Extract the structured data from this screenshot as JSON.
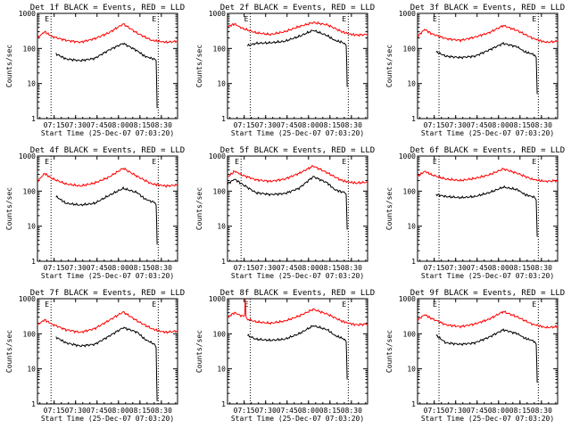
{
  "colors": {
    "events": "#000000",
    "lld": "#ff0000",
    "background": "#ffffff"
  },
  "x_tick_labels": [
    "07:15",
    "07:30",
    "07:45",
    "08:00",
    "08:15",
    "08:30"
  ],
  "y_tick_labels": [
    "1",
    "10",
    "100",
    "1000"
  ],
  "y_axis_label": "Counts/sec",
  "x_axis_label": "Start Time (25-Dec-07 07:03:20)",
  "marker_label": "E",
  "chart_data": [
    {
      "type": "line",
      "title": "Det 1f BLACK = Events, RED = LLD",
      "x_unit": "minutes after 07:03:20",
      "xlim": [
        0,
        98
      ],
      "ylim": [
        1,
        1000
      ],
      "y_scale": "log",
      "grid": false,
      "markers": [
        {
          "x": 9.5,
          "label": "E"
        },
        {
          "x": 84.5,
          "label": "E"
        }
      ],
      "series": [
        {
          "name": "Events",
          "color": "#000000",
          "x": [
            13,
            20,
            30,
            40,
            50,
            60,
            70,
            75,
            80,
            82,
            83,
            83.4,
            83.7
          ],
          "y": [
            70,
            50,
            45,
            52,
            90,
            140,
            85,
            60,
            52,
            50,
            45,
            10,
            2
          ]
        },
        {
          "name": "LLD",
          "color": "#ff0000",
          "x": [
            0,
            5,
            10,
            20,
            30,
            40,
            50,
            60,
            70,
            80,
            85,
            90,
            98
          ],
          "y": [
            200,
            300,
            220,
            170,
            150,
            190,
            280,
            500,
            270,
            170,
            160,
            150,
            160
          ]
        }
      ]
    },
    {
      "type": "line",
      "title": "Det 2f BLACK = Events, RED = LLD",
      "x_unit": "minutes after 07:03:20",
      "xlim": [
        0,
        98
      ],
      "ylim": [
        1,
        1000
      ],
      "y_scale": "log",
      "grid": false,
      "markers": [
        {
          "x": 16,
          "label": "E"
        },
        {
          "x": 84.5,
          "label": "E"
        }
      ],
      "series": [
        {
          "name": "Events",
          "color": "#000000",
          "x": [
            14,
            20,
            30,
            40,
            50,
            60,
            70,
            75,
            80,
            82,
            83,
            83.4,
            83.7
          ],
          "y": [
            120,
            140,
            145,
            160,
            220,
            330,
            230,
            170,
            150,
            140,
            120,
            40,
            8
          ]
        },
        {
          "name": "LLD",
          "color": "#ff0000",
          "x": [
            0,
            5,
            10,
            20,
            30,
            40,
            50,
            60,
            70,
            80,
            85,
            90,
            98
          ],
          "y": [
            420,
            500,
            380,
            280,
            250,
            300,
            420,
            550,
            470,
            300,
            260,
            240,
            250
          ]
        }
      ]
    },
    {
      "type": "line",
      "title": "Det 3f BLACK = Events, RED = LLD",
      "x_unit": "minutes after 07:03:20",
      "xlim": [
        0,
        98
      ],
      "ylim": [
        1,
        1000
      ],
      "y_scale": "log",
      "grid": false,
      "markers": [
        {
          "x": 15,
          "label": "E"
        },
        {
          "x": 84.5,
          "label": "E"
        }
      ],
      "series": [
        {
          "name": "Events",
          "color": "#000000",
          "x": [
            13,
            20,
            30,
            40,
            50,
            60,
            70,
            75,
            80,
            82,
            83,
            83.4,
            83.7
          ],
          "y": [
            80,
            60,
            55,
            60,
            90,
            140,
            110,
            80,
            70,
            65,
            55,
            15,
            5
          ]
        },
        {
          "name": "LLD",
          "color": "#ff0000",
          "x": [
            0,
            5,
            10,
            20,
            30,
            40,
            50,
            60,
            70,
            80,
            85,
            90,
            98
          ],
          "y": [
            220,
            350,
            260,
            190,
            170,
            210,
            280,
            450,
            320,
            200,
            170,
            150,
            160
          ]
        }
      ]
    },
    {
      "type": "line",
      "title": "Det 4f BLACK = Events, RED = LLD",
      "x_unit": "minutes after 07:03:20",
      "xlim": [
        0,
        98
      ],
      "ylim": [
        1,
        1000
      ],
      "y_scale": "log",
      "grid": false,
      "markers": [
        {
          "x": 9.5,
          "label": "E"
        },
        {
          "x": 84.5,
          "label": "E"
        }
      ],
      "series": [
        {
          "name": "Events",
          "color": "#000000",
          "x": [
            13,
            20,
            30,
            40,
            50,
            60,
            70,
            75,
            80,
            82,
            83,
            83.4,
            83.7
          ],
          "y": [
            70,
            45,
            40,
            45,
            75,
            120,
            90,
            60,
            50,
            48,
            40,
            12,
            3
          ]
        },
        {
          "name": "LLD",
          "color": "#ff0000",
          "x": [
            0,
            5,
            10,
            20,
            30,
            40,
            50,
            60,
            70,
            80,
            85,
            90,
            98
          ],
          "y": [
            190,
            320,
            230,
            160,
            140,
            170,
            250,
            450,
            260,
            160,
            150,
            140,
            150
          ]
        }
      ]
    },
    {
      "type": "line",
      "title": "Det 5f BLACK = Events, RED = LLD",
      "x_unit": "minutes after 07:03:20",
      "xlim": [
        0,
        98
      ],
      "ylim": [
        1,
        1000
      ],
      "y_scale": "log",
      "grid": false,
      "markers": [
        {
          "x": 9.5,
          "label": "E"
        },
        {
          "x": 84.5,
          "label": "E"
        }
      ],
      "series": [
        {
          "name": "Events",
          "color": "#000000",
          "x": [
            0,
            5,
            10,
            20,
            30,
            40,
            50,
            60,
            70,
            75,
            80,
            82,
            83,
            83.4,
            83.7
          ],
          "y": [
            160,
            220,
            160,
            90,
            80,
            85,
            120,
            260,
            170,
            110,
            95,
            90,
            80,
            25,
            8
          ]
        },
        {
          "name": "LLD",
          "color": "#ff0000",
          "x": [
            0,
            5,
            10,
            20,
            30,
            40,
            50,
            60,
            70,
            80,
            85,
            90,
            98
          ],
          "y": [
            250,
            370,
            290,
            210,
            190,
            220,
            320,
            520,
            330,
            200,
            180,
            170,
            180
          ]
        }
      ]
    },
    {
      "type": "line",
      "title": "Det 6f BLACK = Events, RED = LLD",
      "x_unit": "minutes after 07:03:20",
      "xlim": [
        0,
        98
      ],
      "ylim": [
        1,
        1000
      ],
      "y_scale": "log",
      "grid": false,
      "markers": [
        {
          "x": 15,
          "label": "E"
        },
        {
          "x": 84.5,
          "label": "E"
        }
      ],
      "series": [
        {
          "name": "Events",
          "color": "#000000",
          "x": [
            13,
            20,
            30,
            40,
            50,
            60,
            70,
            75,
            80,
            82,
            83,
            83.4,
            83.7
          ],
          "y": [
            80,
            70,
            65,
            70,
            90,
            130,
            110,
            80,
            70,
            65,
            55,
            15,
            5
          ]
        },
        {
          "name": "LLD",
          "color": "#ff0000",
          "x": [
            0,
            5,
            10,
            20,
            30,
            40,
            50,
            60,
            70,
            80,
            85,
            90,
            98
          ],
          "y": [
            260,
            370,
            290,
            220,
            200,
            230,
            290,
            430,
            320,
            220,
            200,
            190,
            200
          ]
        }
      ]
    },
    {
      "type": "line",
      "title": "Det 7f BLACK = Events, RED = LLD",
      "x_unit": "minutes after 07:03:20",
      "xlim": [
        0,
        98
      ],
      "ylim": [
        1,
        1000
      ],
      "y_scale": "log",
      "grid": false,
      "markers": [
        {
          "x": 9.5,
          "label": "E"
        },
        {
          "x": 84.5,
          "label": "E"
        }
      ],
      "series": [
        {
          "name": "Events",
          "color": "#000000",
          "x": [
            13,
            20,
            30,
            40,
            50,
            60,
            70,
            75,
            80,
            82,
            83,
            83.4,
            83.7
          ],
          "y": [
            80,
            55,
            45,
            50,
            85,
            150,
            110,
            70,
            55,
            50,
            40,
            5,
            1.2
          ]
        },
        {
          "name": "LLD",
          "color": "#ff0000",
          "x": [
            0,
            5,
            10,
            20,
            30,
            40,
            50,
            60,
            70,
            80,
            85,
            90,
            98
          ],
          "y": [
            180,
            250,
            190,
            130,
            110,
            140,
            240,
            420,
            230,
            140,
            120,
            110,
            120
          ]
        }
      ]
    },
    {
      "type": "line",
      "title": "Det 8f BLACK = Events, RED = LLD",
      "x_unit": "minutes after 07:03:20",
      "xlim": [
        0,
        98
      ],
      "ylim": [
        1,
        1000
      ],
      "y_scale": "log",
      "grid": false,
      "markers": [
        {
          "x": 16,
          "label": "E"
        },
        {
          "x": 84.5,
          "label": "E"
        }
      ],
      "series": [
        {
          "name": "Events",
          "color": "#000000",
          "x": [
            14,
            20,
            30,
            40,
            50,
            60,
            70,
            75,
            80,
            82,
            83,
            83.4,
            83.7
          ],
          "y": [
            90,
            70,
            65,
            70,
            100,
            170,
            130,
            90,
            75,
            70,
            60,
            18,
            5
          ]
        },
        {
          "name": "LLD",
          "color": "#ff0000",
          "x": [
            0,
            5,
            10,
            12,
            12.5,
            13,
            14,
            20,
            30,
            40,
            50,
            60,
            70,
            80,
            85,
            90,
            98
          ],
          "y": [
            300,
            400,
            320,
            330,
            1000,
            300,
            260,
            220,
            200,
            230,
            320,
            500,
            360,
            230,
            200,
            180,
            190
          ]
        }
      ]
    },
    {
      "type": "line",
      "title": "Det 9f BLACK = Events, RED = LLD",
      "x_unit": "minutes after 07:03:20",
      "xlim": [
        0,
        98
      ],
      "ylim": [
        1,
        1000
      ],
      "y_scale": "log",
      "grid": false,
      "markers": [
        {
          "x": 15,
          "label": "E"
        },
        {
          "x": 84.5,
          "label": "E"
        }
      ],
      "series": [
        {
          "name": "Events",
          "color": "#000000",
          "x": [
            13,
            20,
            30,
            40,
            50,
            60,
            70,
            75,
            80,
            82,
            83,
            83.4,
            83.7
          ],
          "y": [
            90,
            55,
            50,
            55,
            80,
            130,
            100,
            75,
            65,
            60,
            50,
            15,
            4
          ]
        },
        {
          "name": "LLD",
          "color": "#ff0000",
          "x": [
            0,
            5,
            10,
            20,
            30,
            40,
            50,
            60,
            70,
            80,
            85,
            90,
            98
          ],
          "y": [
            250,
            350,
            270,
            180,
            160,
            190,
            260,
            430,
            300,
            190,
            170,
            150,
            160
          ]
        }
      ]
    }
  ]
}
